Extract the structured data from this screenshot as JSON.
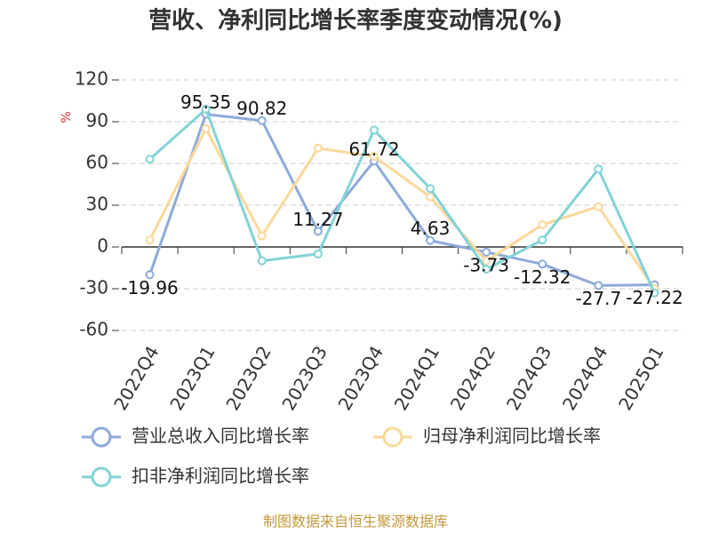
{
  "chart_data": {
    "type": "line",
    "title": "营收、净利同比增长率季度变动情况(%)",
    "y_unit": "%",
    "source": "制图数据来自恒生聚源数据库",
    "categories": [
      "2022Q4",
      "2023Q1",
      "2023Q2",
      "2023Q3",
      "2023Q4",
      "2024Q1",
      "2024Q2",
      "2024Q3",
      "2024Q4",
      "2025Q1"
    ],
    "series": [
      {
        "name": "营业总收入同比增长率",
        "color": "#8eaad9",
        "values": [
          -19.96,
          95.35,
          90.82,
          11.27,
          61.72,
          4.63,
          -3.73,
          -12.32,
          -27.7,
          -27.22
        ],
        "show_labels": true
      },
      {
        "name": "归母净利润同比增长率",
        "color": "#fbd89b",
        "values": [
          5,
          85,
          8,
          71,
          65,
          36,
          -10,
          16,
          29,
          -30
        ],
        "show_labels": false
      },
      {
        "name": "扣非净利润同比增长率",
        "color": "#82d3d6",
        "values": [
          63,
          99,
          -10,
          -5,
          84,
          42,
          -16,
          5,
          56,
          -33
        ],
        "show_labels": false
      }
    ],
    "ylim": [
      -60,
      120
    ],
    "yticks": [
      -60,
      -30,
      0,
      30,
      60,
      90,
      120
    ],
    "grid": true
  }
}
